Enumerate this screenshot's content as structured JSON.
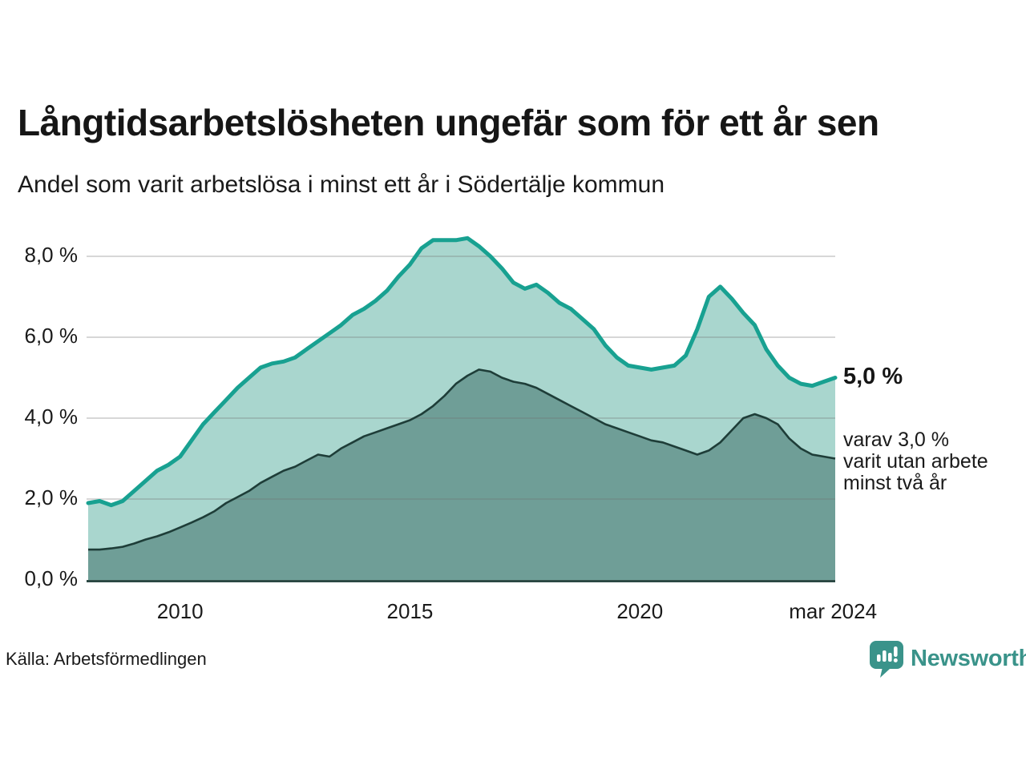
{
  "header": {
    "title": "Långtidsarbetslösheten ungefär som för ett år sen",
    "subtitle": "Andel som varit arbetslösa i minst ett år i Södertälje kommun"
  },
  "annotations": {
    "latest_value": "5,0 %",
    "secondary_note": "varav 3,0 %\nvarit utan arbete\nminst två år"
  },
  "footer": {
    "source": "Källa: Arbetsförmedlingen",
    "brand": "Newsworthy",
    "brand_icon": "newsworthy-chart-bubble-icon"
  },
  "colors": {
    "background": "#ffffff",
    "text": "#1a1a1a",
    "total_line": "#18a191",
    "total_fill": "#a9d6ce",
    "twoyear_line": "#1e3d38",
    "twoyear_fill": "#6f9e97",
    "axis": "#1e3d38",
    "grid": "rgba(110,110,110,0.28)",
    "brand_teal": "#3a938a"
  },
  "chart_data": {
    "type": "area",
    "title": "Långtidsarbetslösheten ungefär som för ett år sen",
    "subtitle": "Andel som varit arbetslösa i minst ett år i Södertälje kommun",
    "xlabel": "",
    "ylabel": "",
    "grid": "horizontal",
    "legend_position": "none",
    "xlim": [
      2008,
      2024.25
    ],
    "ylim": [
      0,
      8.6
    ],
    "x": [
      2008.0,
      2008.25,
      2008.5,
      2008.75,
      2009.0,
      2009.25,
      2009.5,
      2009.75,
      2010.0,
      2010.25,
      2010.5,
      2010.75,
      2011.0,
      2011.25,
      2011.5,
      2011.75,
      2012.0,
      2012.25,
      2012.5,
      2012.75,
      2013.0,
      2013.25,
      2013.5,
      2013.75,
      2014.0,
      2014.25,
      2014.5,
      2014.75,
      2015.0,
      2015.25,
      2015.5,
      2015.75,
      2016.0,
      2016.25,
      2016.5,
      2016.75,
      2017.0,
      2017.25,
      2017.5,
      2017.75,
      2018.0,
      2018.25,
      2018.5,
      2018.75,
      2019.0,
      2019.25,
      2019.5,
      2019.75,
      2020.0,
      2020.25,
      2020.5,
      2020.75,
      2021.0,
      2021.25,
      2021.5,
      2021.75,
      2022.0,
      2022.25,
      2022.5,
      2022.75,
      2023.0,
      2023.25,
      2023.5,
      2023.75,
      2024.0,
      2024.25
    ],
    "series": [
      {
        "name": "Arbetslösa minst ett år",
        "color": "#18a191",
        "fill": "#a9d6ce",
        "line_width": 5,
        "values": [
          1.9,
          1.95,
          1.85,
          1.95,
          2.2,
          2.45,
          2.7,
          2.85,
          3.05,
          3.45,
          3.85,
          4.15,
          4.45,
          4.75,
          5.0,
          5.25,
          5.35,
          5.4,
          5.5,
          5.7,
          5.9,
          6.1,
          6.3,
          6.55,
          6.7,
          6.9,
          7.15,
          7.5,
          7.8,
          8.2,
          8.4,
          8.4,
          8.4,
          8.45,
          8.25,
          8.0,
          7.7,
          7.35,
          7.2,
          7.3,
          7.1,
          6.85,
          6.7,
          6.45,
          6.2,
          5.8,
          5.5,
          5.3,
          5.25,
          5.2,
          5.25,
          5.3,
          5.55,
          6.2,
          7.0,
          7.25,
          6.95,
          6.6,
          6.3,
          5.7,
          5.3,
          5.0,
          4.85,
          4.8,
          4.9,
          5.0
        ]
      },
      {
        "name": "Utan arbete minst två år",
        "color": "#1e3d38",
        "fill": "#6f9e97",
        "line_width": 2.6,
        "values": [
          0.75,
          0.75,
          0.78,
          0.82,
          0.9,
          1.0,
          1.08,
          1.18,
          1.3,
          1.42,
          1.55,
          1.7,
          1.9,
          2.05,
          2.2,
          2.4,
          2.55,
          2.7,
          2.8,
          2.95,
          3.1,
          3.05,
          3.25,
          3.4,
          3.55,
          3.65,
          3.75,
          3.85,
          3.95,
          4.1,
          4.3,
          4.55,
          4.85,
          5.05,
          5.2,
          5.15,
          5.0,
          4.9,
          4.85,
          4.75,
          4.6,
          4.45,
          4.3,
          4.15,
          4.0,
          3.85,
          3.75,
          3.65,
          3.55,
          3.45,
          3.4,
          3.3,
          3.2,
          3.1,
          3.2,
          3.4,
          3.7,
          4.0,
          4.1,
          4.0,
          3.85,
          3.5,
          3.25,
          3.1,
          3.05,
          3.0
        ]
      }
    ],
    "yticks": [
      {
        "value": 0,
        "label": "0,0 %"
      },
      {
        "value": 2,
        "label": "2,0 %"
      },
      {
        "value": 4,
        "label": "4,0 %"
      },
      {
        "value": 6,
        "label": "6,0 %"
      },
      {
        "value": 8,
        "label": "8,0 %"
      }
    ],
    "xticks": [
      {
        "value": 2010,
        "label": "2010"
      },
      {
        "value": 2015,
        "label": "2015"
      },
      {
        "value": 2020,
        "label": "2020"
      },
      {
        "value": 2024.2,
        "label": "mar 2024"
      }
    ],
    "end_labels": [
      {
        "series": "Arbetslösa minst ett år",
        "text": "5,0 %"
      },
      {
        "series": "Utan arbete minst två år",
        "text": "varav 3,0 % varit utan arbete minst två år"
      }
    ]
  }
}
